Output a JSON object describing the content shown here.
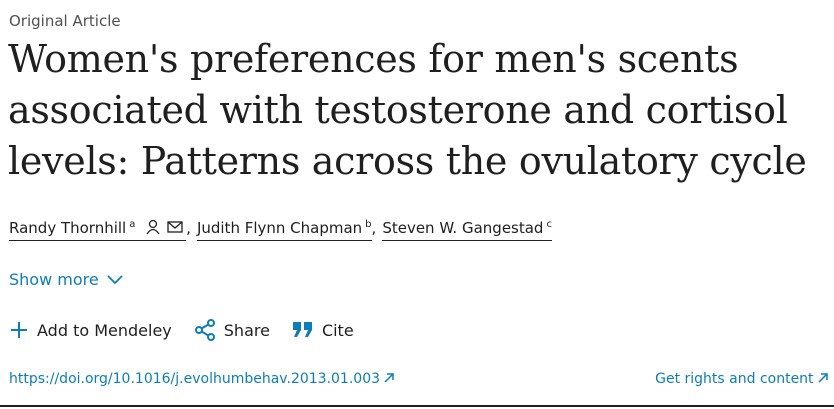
{
  "article_type": "Original Article",
  "title": "Women's preferences for men's scents associated with testosterone and cortisol levels: Patterns across the ovulatory cycle",
  "authors": [
    {
      "name": "Randy Thornhill",
      "affiliation": "a",
      "suffix": ","
    },
    {
      "name": "Judith Flynn Chapman",
      "affiliation": "b",
      "suffix": ","
    },
    {
      "name": "Steven W. Gangestad",
      "affiliation": "c"
    }
  ],
  "show_more": "Show more",
  "actions": [
    "Add to Mendeley",
    "Share",
    "Cite"
  ],
  "doi": "https://doi.org/10.1016/j.evolhumbehav.2013.01.003",
  "rights": "Get rights and content"
}
